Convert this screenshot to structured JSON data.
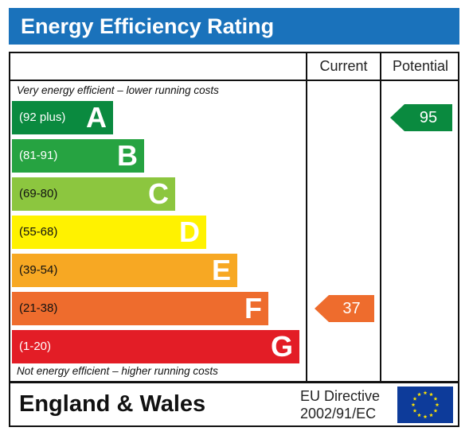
{
  "title": "Energy Efficiency Rating",
  "columns": {
    "current": "Current",
    "potential": "Potential"
  },
  "notes": {
    "top": "Very energy efficient – lower running costs",
    "bottom": "Not energy efficient – higher running costs"
  },
  "footer": {
    "country": "England & Wales",
    "directive_line1": "EU Directive",
    "directive_line2": "2002/91/EC"
  },
  "colors": {
    "title_bar": "#1a72bb",
    "eu_flag_blue": "#0d3b9a",
    "eu_star": "#ffe500"
  },
  "chart_data": {
    "type": "bar",
    "categories": [
      "A",
      "B",
      "C",
      "D",
      "E",
      "F",
      "G"
    ],
    "bands": [
      {
        "letter": "A",
        "range": "(92 plus)",
        "color": "#0a8a3f",
        "range_color": "#ffffff"
      },
      {
        "letter": "B",
        "range": "(81-91)",
        "color": "#26a341",
        "range_color": "#ffffff"
      },
      {
        "letter": "C",
        "range": "(69-80)",
        "color": "#8cc63f",
        "range_color": "#111111"
      },
      {
        "letter": "D",
        "range": "(55-68)",
        "color": "#fff200",
        "range_color": "#111111"
      },
      {
        "letter": "E",
        "range": "(39-54)",
        "color": "#f7a823",
        "range_color": "#111111"
      },
      {
        "letter": "F",
        "range": "(21-38)",
        "color": "#ee6c2d",
        "range_color": "#111111"
      },
      {
        "letter": "G",
        "range": "(1-20)",
        "color": "#e31d26",
        "range_color": "#ffffff"
      }
    ],
    "current": {
      "value": 37,
      "band": "F",
      "color": "#ee6c2d"
    },
    "potential": {
      "value": 95,
      "band": "A",
      "color": "#0a8a3f"
    }
  }
}
